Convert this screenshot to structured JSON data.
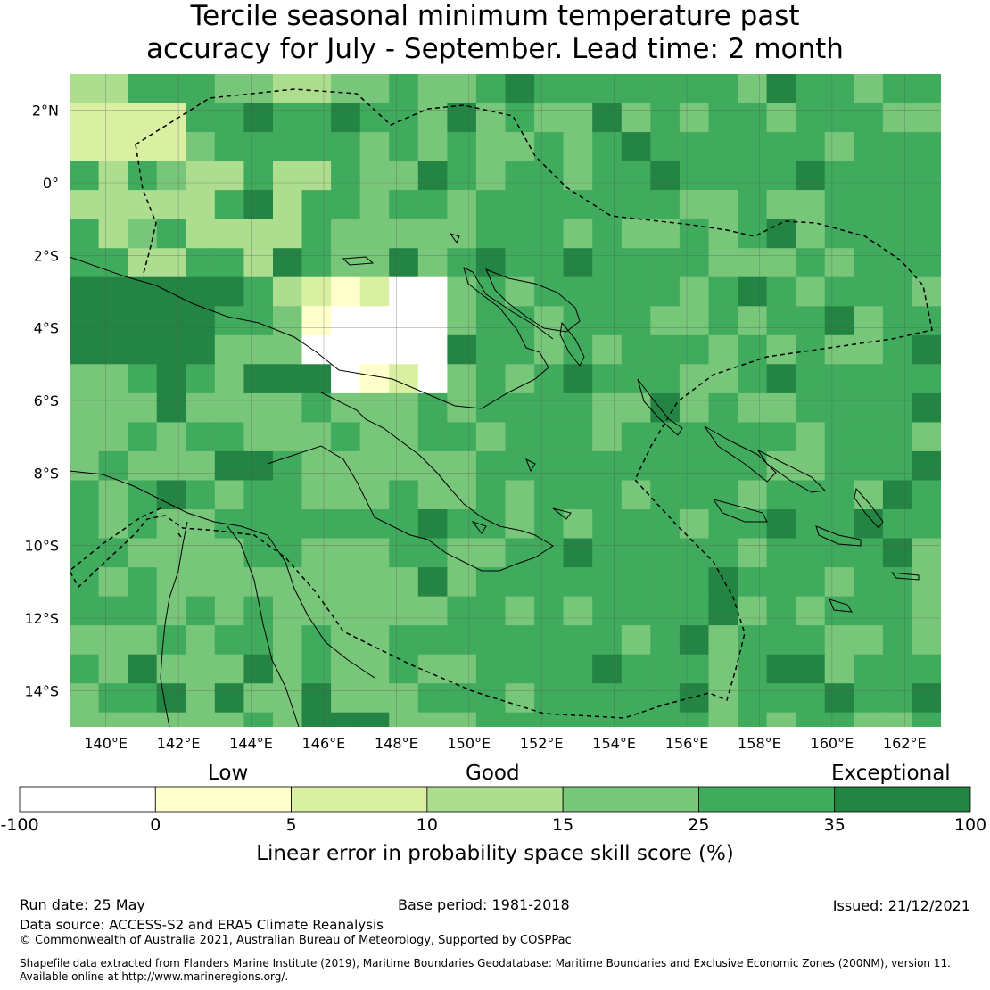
{
  "title_line1": "Tercile seasonal minimum temperature past",
  "title_line2": "accuracy for July - September. Lead time: 2 month",
  "map": {
    "lon_range": [
      139,
      163
    ],
    "lat_range": [
      -15,
      3
    ],
    "lon_ticks": [
      "140°E",
      "142°E",
      "144°E",
      "146°E",
      "148°E",
      "150°E",
      "152°E",
      "154°E",
      "156°E",
      "158°E",
      "160°E",
      "162°E"
    ],
    "lat_ticks": [
      "2°N",
      "0°",
      "2°S",
      "4°S",
      "6°S",
      "8°S",
      "10°S",
      "12°S",
      "14°S"
    ],
    "grid_lines": true,
    "boundary_style": "dashed"
  },
  "colorbar": {
    "category_labels": [
      "Low",
      "Good",
      "Exceptional"
    ],
    "ticks": [
      "-100",
      "0",
      "5",
      "10",
      "15",
      "25",
      "35",
      "100"
    ],
    "colors": [
      "#ffffff",
      "#ffffcc",
      "#d9f0a3",
      "#addd8e",
      "#78c679",
      "#41ab5d",
      "#238443"
    ],
    "title": "Linear error in probability space skill score (%)"
  },
  "footer": {
    "run_date": "Run date: 25 May",
    "base_period": "Base period: 1981-2018",
    "issued": "Issued: 21/12/2021",
    "data_source": "Data source: ACCESS-S2 and ERA5 Climate Reanalysis",
    "copyright": "© Commonwealth of Australia 2021, Australian Bureau of Meteorology, Supported by COSPPac",
    "shapefile_line1": "Shapefile data extracted from Flanders Marine Institute (2019), Maritime Boundaries Geodatabase: Maritime Boundaries and Exclusive Economic Zones (200NM), version 11.",
    "shapefile_line2": "Available online at http://www.marineregions.org/."
  }
}
